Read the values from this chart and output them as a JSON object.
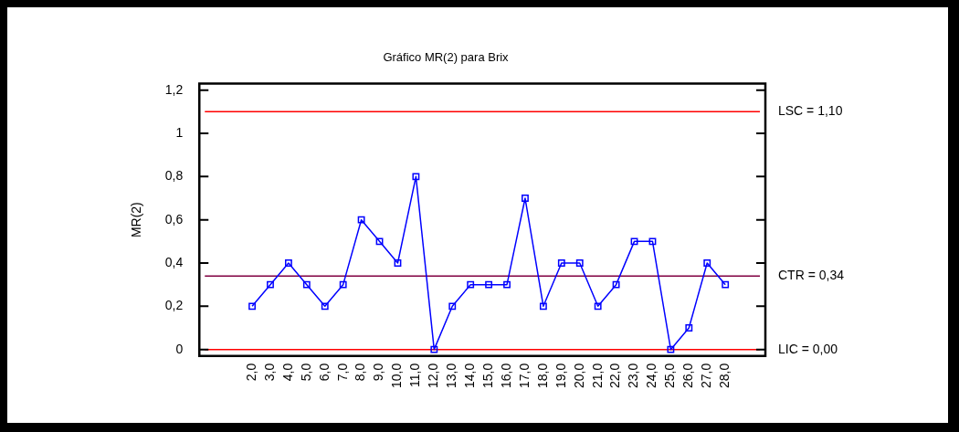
{
  "chart_data": {
    "type": "line",
    "title": "Gráfico MR(2) para Brix",
    "ylabel": "MR(2)",
    "x": [
      2,
      3,
      4,
      5,
      6,
      7,
      8,
      9,
      10,
      11,
      12,
      13,
      14,
      15,
      16,
      17,
      18,
      19,
      20,
      21,
      22,
      23,
      24,
      25,
      26,
      27,
      28
    ],
    "series": [
      {
        "color": "#0000ff",
        "values": [
          0.2,
          0.3,
          0.4,
          0.3,
          0.2,
          0.3,
          0.6,
          0.5,
          0.4,
          0.8,
          0,
          0.2,
          0.3,
          0.3,
          0.3,
          0.7,
          0.2,
          0.4,
          0.4,
          0.2,
          0.3,
          0.5,
          0.5,
          0,
          0.1,
          0.4,
          0.3
        ]
      }
    ],
    "marker": "square",
    "line_style": "solid",
    "grid": false,
    "legend": false,
    "xlim": [
      -0.9,
      30.2
    ],
    "ylim": [
      -0.03,
      1.23
    ],
    "xticks": [
      {
        "value": 2,
        "label": "2,0"
      },
      {
        "value": 3,
        "label": "3,0"
      },
      {
        "value": 4,
        "label": "4,0"
      },
      {
        "value": 5,
        "label": "5,0"
      },
      {
        "value": 6,
        "label": "6,0"
      },
      {
        "value": 7,
        "label": "7,0"
      },
      {
        "value": 8,
        "label": "8,0"
      },
      {
        "value": 9,
        "label": "9,0"
      },
      {
        "value": 10,
        "label": "10,0"
      },
      {
        "value": 11,
        "label": "11,0"
      },
      {
        "value": 12,
        "label": "12,0"
      },
      {
        "value": 13,
        "label": "13,0"
      },
      {
        "value": 14,
        "label": "14,0"
      },
      {
        "value": 15,
        "label": "15,0"
      },
      {
        "value": 16,
        "label": "16,0"
      },
      {
        "value": 17,
        "label": "17,0"
      },
      {
        "value": 18,
        "label": "18,0"
      },
      {
        "value": 19,
        "label": "19,0"
      },
      {
        "value": 20,
        "label": "20,0"
      },
      {
        "value": 21,
        "label": "21,0"
      },
      {
        "value": 22,
        "label": "22,0"
      },
      {
        "value": 23,
        "label": "23,0"
      },
      {
        "value": 24,
        "label": "24,0"
      },
      {
        "value": 25,
        "label": "25,0"
      },
      {
        "value": 26,
        "label": "26,0"
      },
      {
        "value": 27,
        "label": "27,0"
      },
      {
        "value": 28,
        "label": "28,0"
      }
    ],
    "yticks": [
      0,
      {
        "value": 0.2,
        "label": "0,2"
      },
      {
        "value": 0.4,
        "label": "0,4"
      },
      {
        "value": 0.6,
        "label": "0,6"
      },
      {
        "value": 0.8,
        "label": "0,8"
      },
      1,
      {
        "value": 1.2,
        "label": "1,2"
      }
    ],
    "ref_lines": [
      {
        "axis": "y",
        "value": 1.1,
        "label": "LSC = 1,10",
        "color": "#ff0000"
      },
      {
        "axis": "y",
        "value": 0.34,
        "label": "CTR = 0,34",
        "color": "#800040"
      },
      {
        "axis": "y",
        "value": 0,
        "label": "LIC = 0,00",
        "color": "#ff0000"
      }
    ]
  }
}
